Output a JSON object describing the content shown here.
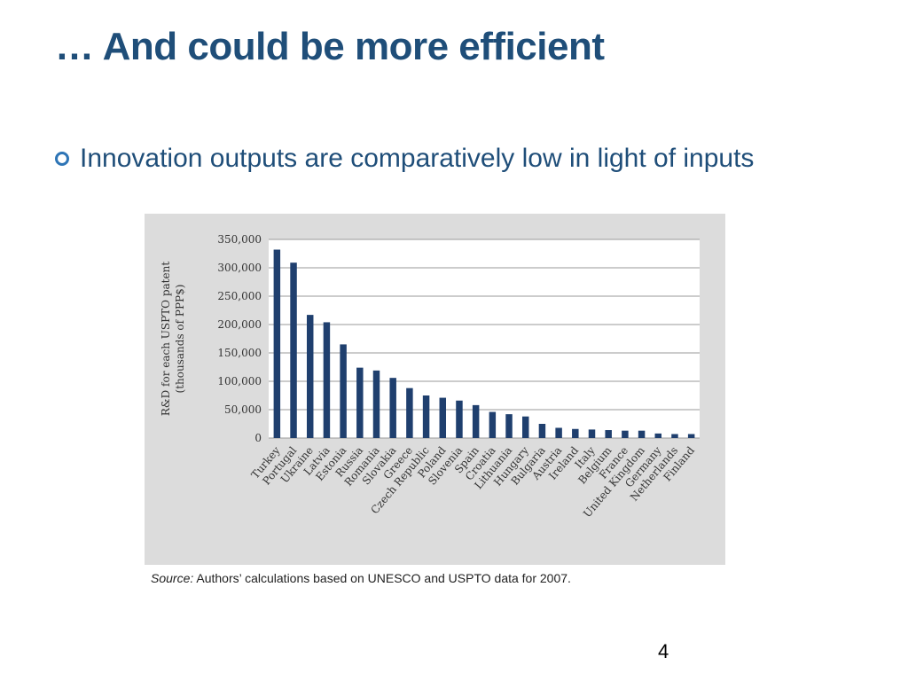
{
  "slide": {
    "title": "… And could be more efficient",
    "bullet": "Innovation outputs are comparatively low in light of inputs",
    "source_label": "Source:",
    "source_text": " Authors’ calculations based on UNESCO and USPTO data for 2007.",
    "page_number": "4"
  },
  "colors": {
    "title": "#1f4e79",
    "bullet": "#2e75b6",
    "bar": "#1f3f6e",
    "chart_bg": "#dcdcdc"
  },
  "chart_data": {
    "type": "bar",
    "title": "",
    "xlabel": "",
    "ylabel": "R&D for each USPTO patent (thousands of PPP$)",
    "ylabel_lines": [
      "R&D for each USPTO patent",
      "(thousands of PPP$)"
    ],
    "ylim": [
      0,
      350000
    ],
    "yticks": [
      0,
      50000,
      100000,
      150000,
      200000,
      250000,
      300000,
      350000
    ],
    "ytick_labels": [
      "0",
      "50,000",
      "100,000",
      "150,000",
      "200,000",
      "250,000",
      "300,000",
      "350,000"
    ],
    "grid": true,
    "categories": [
      "Turkey",
      "Portugal",
      "Ukraine",
      "Latvia",
      "Estonia",
      "Russia",
      "Romania",
      "Slovakia",
      "Greece",
      "Czech Republic",
      "Poland",
      "Slovenia",
      "Spain",
      "Croatia",
      "Lithuania",
      "Hungary",
      "Bulgaria",
      "Austria",
      "Ireland",
      "Italy",
      "Belgium",
      "France",
      "United Kingdom",
      "Germany",
      "Netherlands",
      "Finland"
    ],
    "values": [
      332000,
      309000,
      217000,
      204000,
      165000,
      124000,
      119000,
      106000,
      88000,
      75000,
      71000,
      66000,
      58000,
      46000,
      42000,
      38000,
      25000,
      18000,
      16000,
      15000,
      14000,
      13000,
      13000,
      8000,
      7000,
      7000
    ]
  }
}
